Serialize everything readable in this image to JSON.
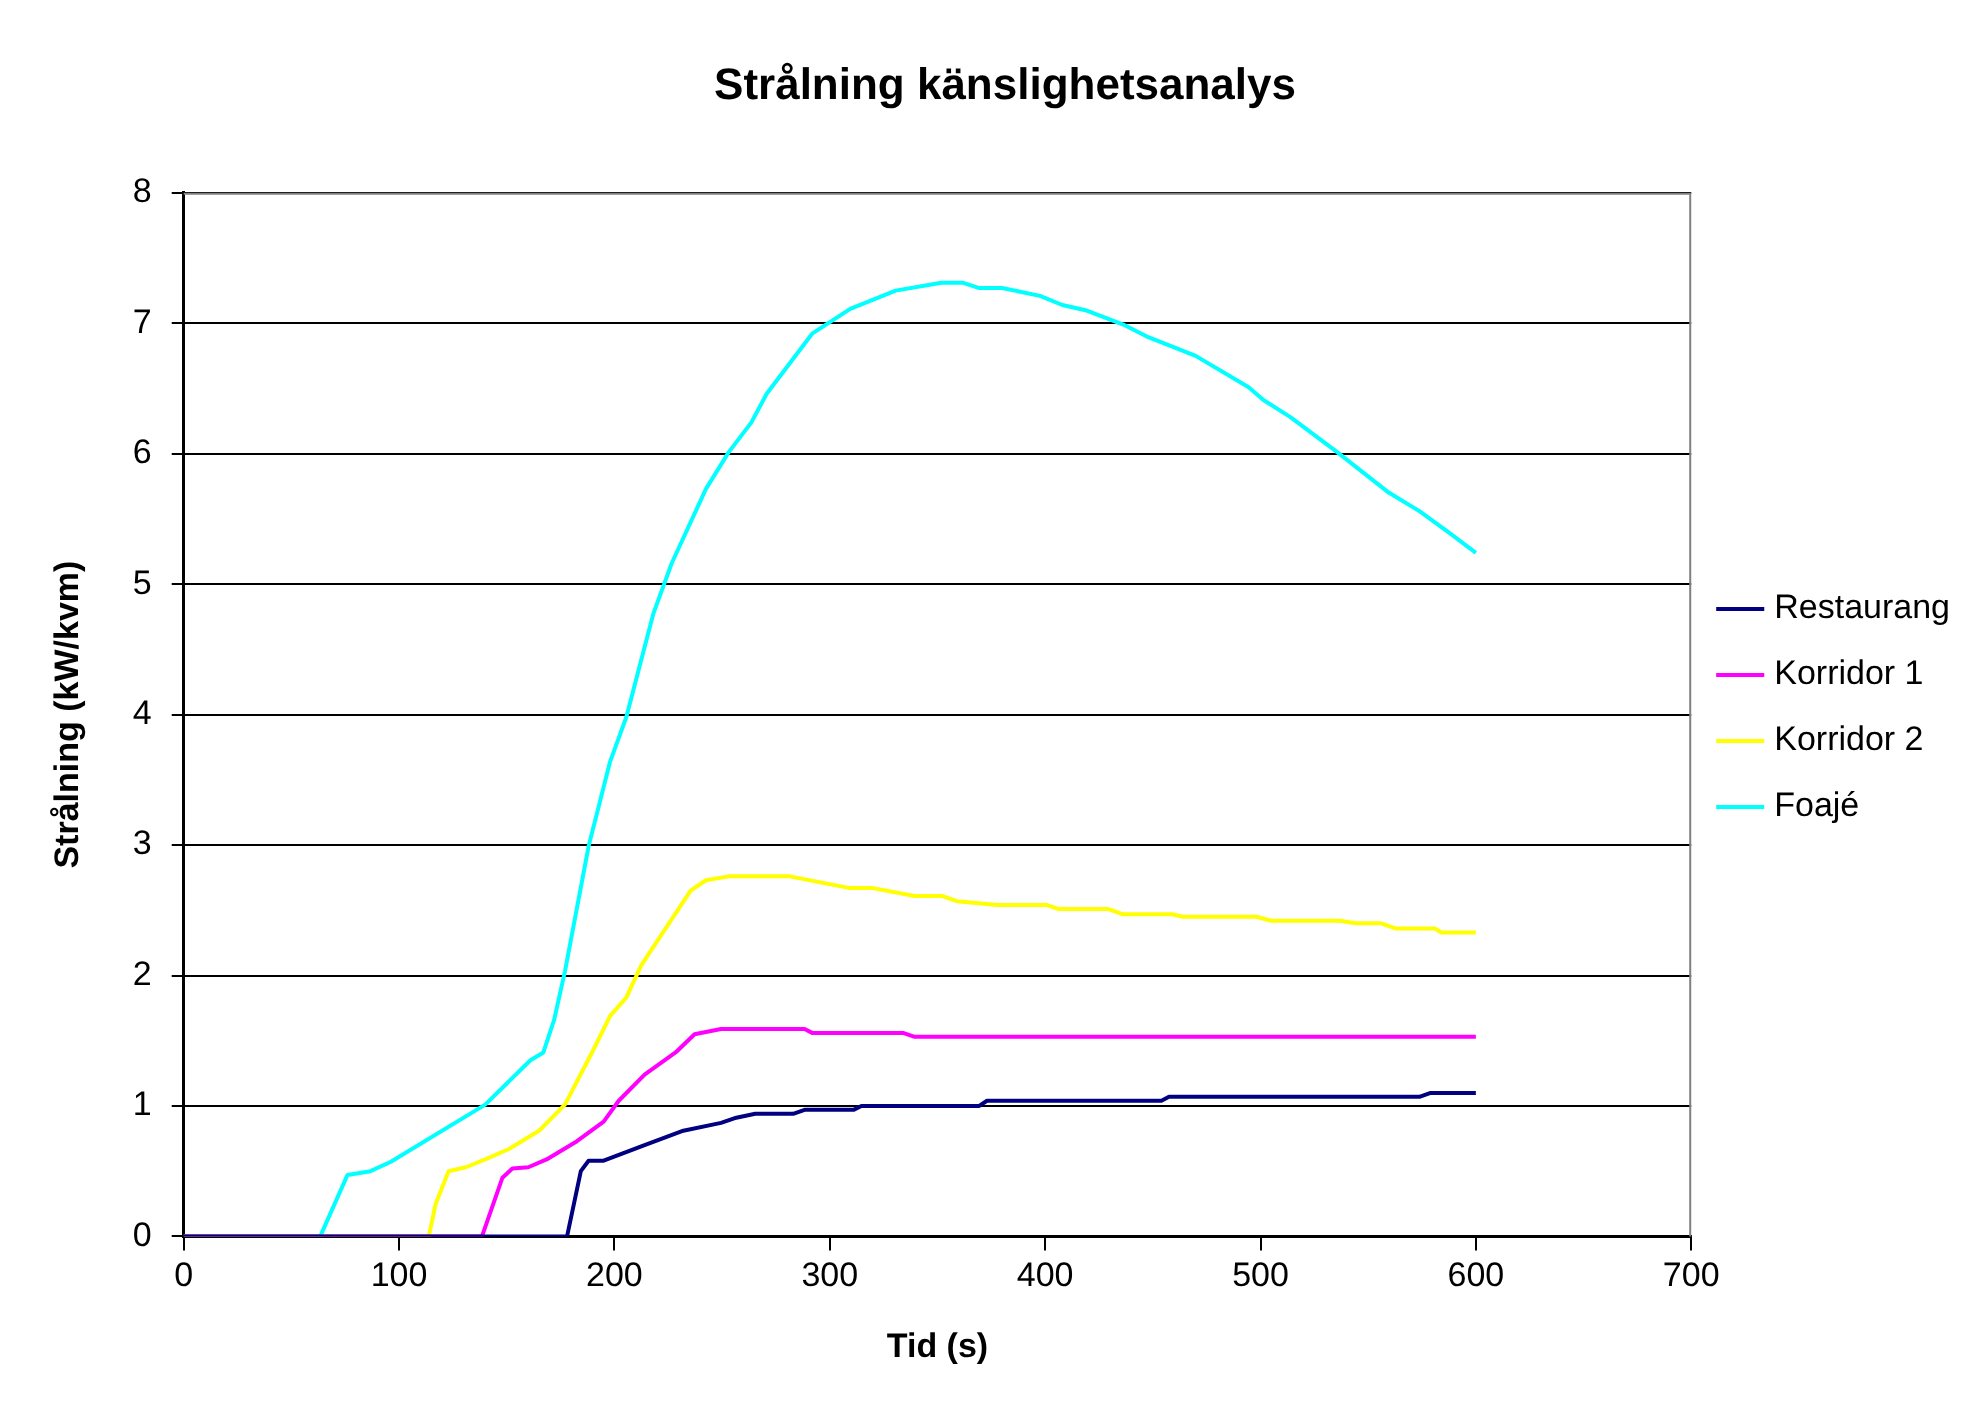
{
  "chart_data": {
    "type": "line",
    "title": "Strålning känslighetsanalys",
    "xlabel": "Tid (s)",
    "ylabel": "Strålning (kW/kvm)",
    "xlim": [
      0,
      700
    ],
    "xticks": [
      0,
      100,
      200,
      300,
      400,
      500,
      600,
      700
    ],
    "ylim": [
      0,
      8
    ],
    "yticks": [
      0,
      1,
      2,
      3,
      4,
      5,
      6,
      7,
      8
    ],
    "grid": "y",
    "legend": "right",
    "marker": "none",
    "line_style": "solid",
    "series": [
      {
        "name": "Restaurang",
        "color": "#000080",
        "x": [
          0,
          178,
          184.4,
          188,
          195,
          214,
          232,
          249.5,
          256.6,
          265.4,
          283,
          288.3,
          311,
          314.7,
          369.4,
          373,
          454,
          457.5,
          573.8,
          579,
          600
        ],
        "values": [
          0,
          0,
          0.5,
          0.58,
          0.58,
          0.7,
          0.81,
          0.87,
          0.91,
          0.94,
          0.94,
          0.97,
          0.97,
          1,
          1,
          1.04,
          1.04,
          1.07,
          1.07,
          1.1,
          1.1
        ]
      },
      {
        "name": "Korridor 1",
        "color": "#ff00ff",
        "x": [
          0,
          138.5,
          148,
          152.6,
          160,
          168.5,
          182.6,
          195,
          202,
          214,
          228.4,
          237.2,
          249.5,
          288.3,
          291.8,
          334,
          339.4,
          600
        ],
        "values": [
          0,
          0,
          0.45,
          0.52,
          0.53,
          0.59,
          0.73,
          0.88,
          1.04,
          1.24,
          1.41,
          1.55,
          1.59,
          1.59,
          1.56,
          1.56,
          1.53,
          1.53
        ]
      },
      {
        "name": "Korridor 2",
        "color": "#ffff00",
        "x": [
          0,
          113.8,
          117,
          123,
          131,
          140,
          151,
          165,
          177,
          189.6,
          198,
          205.5,
          212.5,
          235.4,
          242.5,
          253,
          281.3,
          309.5,
          320,
          339.4,
          352,
          359,
          378,
          401,
          406,
          429,
          436,
          459,
          464,
          498,
          505,
          537,
          544,
          556,
          563,
          581,
          584,
          600
        ],
        "values": [
          0,
          0,
          0.25,
          0.5,
          0.53,
          0.59,
          0.67,
          0.81,
          1.01,
          1.41,
          1.69,
          1.83,
          2.08,
          2.65,
          2.73,
          2.76,
          2.76,
          2.67,
          2.67,
          2.61,
          2.61,
          2.57,
          2.54,
          2.54,
          2.51,
          2.51,
          2.47,
          2.47,
          2.45,
          2.45,
          2.42,
          2.42,
          2.4,
          2.4,
          2.36,
          2.36,
          2.33,
          2.33
        ]
      },
      {
        "name": "Foajé",
        "color": "#00ffff",
        "x": [
          0,
          63.4,
          76,
          86.7,
          96,
          140,
          161,
          167,
          172,
          177,
          188,
          198,
          205.5,
          218,
          226.6,
          242.5,
          253,
          263.6,
          270.7,
          291.8,
          309.5,
          330.6,
          351.8,
          362,
          369.4,
          380,
          397.6,
          408,
          418.7,
          436.3,
          447,
          469.9,
          494.5,
          501.5,
          513.9,
          535,
          559.7,
          573.8,
          588,
          600
        ],
        "values": [
          0,
          0,
          0.47,
          0.5,
          0.57,
          1.01,
          1.35,
          1.41,
          1.66,
          2.03,
          2.99,
          3.64,
          3.98,
          4.77,
          5.16,
          5.73,
          6.01,
          6.24,
          6.46,
          6.92,
          7.11,
          7.25,
          7.31,
          7.31,
          7.27,
          7.27,
          7.21,
          7.14,
          7.1,
          6.99,
          6.9,
          6.75,
          6.51,
          6.41,
          6.28,
          6.02,
          5.7,
          5.56,
          5.39,
          5.24
        ]
      }
    ]
  }
}
